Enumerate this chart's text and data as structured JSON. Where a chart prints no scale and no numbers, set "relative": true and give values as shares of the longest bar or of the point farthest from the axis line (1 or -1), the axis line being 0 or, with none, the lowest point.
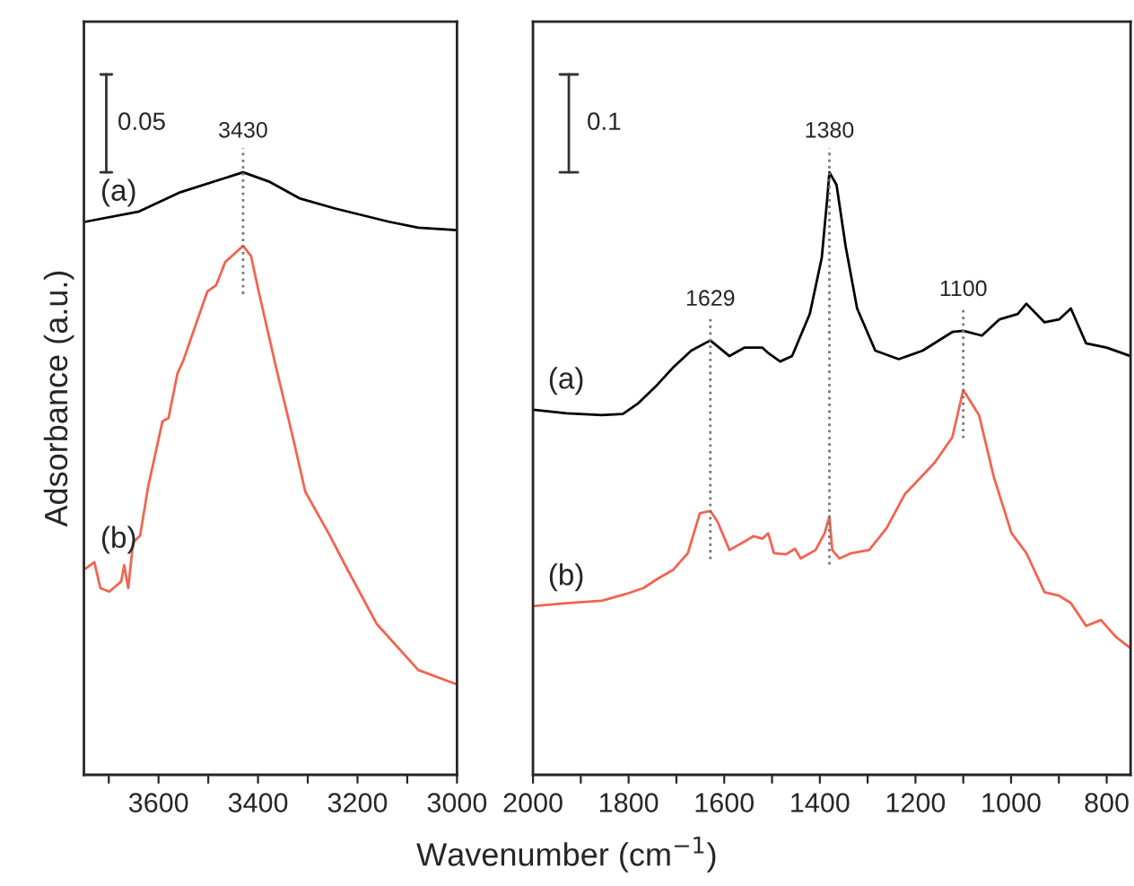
{
  "chart_data": [
    {
      "type": "line",
      "relative": true,
      "ylabel": "Adsorbance (a.u.)",
      "xlabel": "Wavenumber (cm$^{−1}$)",
      "tick_labels": "x",
      "xlim": [
        3750,
        3000
      ],
      "xticks": [
        {
          "value": 3700,
          "label": null
        },
        3600,
        {
          "value": 3500,
          "label": null
        },
        3400,
        {
          "value": 3300,
          "label": null
        },
        3200,
        {
          "value": 3100,
          "label": null
        },
        3000
      ],
      "annotations": [
        "0.05",
        {
          "text": "3430",
          "x": 3430,
          "y": 1.0
        }
      ],
      "series": [
        {
          "name": "(a)",
          "color": "#000000",
          "x": [
            3747,
            3639,
            3556,
            3430,
            3376,
            3317,
            3245,
            3137,
            3078,
            3000
          ],
          "values": [
            0.918,
            0.935,
            0.967,
            1.0,
            0.984,
            0.957,
            0.94,
            0.918,
            0.908,
            0.904
          ]
        },
        {
          "name": "(b)",
          "color": "#f4634f",
          "x": [
            3747,
            3729,
            3717,
            3699,
            3675,
            3669,
            3661,
            3651,
            3637,
            3621,
            3592,
            3580,
            3562,
            3550,
            3532,
            3502,
            3484,
            3466,
            3430,
            3414,
            3400,
            3364,
            3329,
            3305,
            3257,
            3221,
            3161,
            3078,
            3000
          ],
          "values": [
            0.342,
            0.353,
            0.31,
            0.304,
            0.321,
            0.348,
            0.31,
            0.386,
            0.397,
            0.478,
            0.587,
            0.592,
            0.666,
            0.688,
            0.731,
            0.802,
            0.813,
            0.851,
            0.878,
            0.861,
            0.807,
            0.677,
            0.557,
            0.47,
            0.399,
            0.342,
            0.25,
            0.174,
            0.15
          ]
        }
      ]
    },
    {
      "type": "line",
      "relative": true,
      "tick_labels": "x",
      "xlim": [
        2000,
        750
      ],
      "xticks": [
        2000,
        {
          "value": 1900,
          "label": null
        },
        1800,
        {
          "value": 1700,
          "label": null
        },
        1600,
        {
          "value": 1500,
          "label": null
        },
        1400,
        {
          "value": 1300,
          "label": null
        },
        1200,
        {
          "value": 1100,
          "label": null
        },
        1000,
        {
          "value": 900,
          "label": null
        },
        800
      ],
      "annotations": [
        "0.1",
        {
          "text": "1629",
          "x": 1629,
          "y": 0.721
        },
        {
          "text": "1380",
          "x": 1380,
          "y": 1.0
        },
        {
          "text": "1100",
          "x": 1100,
          "y": 0.737
        }
      ],
      "series": [
        {
          "name": "(a)",
          "color": "#000000",
          "x": [
            2000,
            1930,
            1856,
            1812,
            1781,
            1744,
            1707,
            1669,
            1629,
            1589,
            1558,
            1520,
            1508,
            1483,
            1458,
            1421,
            1396,
            1384,
            1380,
            1365,
            1346,
            1322,
            1284,
            1235,
            1185,
            1123,
            1100,
            1061,
            1024,
            986,
            968,
            930,
            899,
            875,
            843,
            800,
            750
          ],
          "values": [
            0.606,
            0.6,
            0.597,
            0.599,
            0.616,
            0.644,
            0.676,
            0.704,
            0.721,
            0.695,
            0.709,
            0.709,
            0.7,
            0.686,
            0.695,
            0.765,
            0.858,
            0.961,
            1.0,
            0.979,
            0.877,
            0.774,
            0.704,
            0.69,
            0.704,
            0.735,
            0.737,
            0.729,
            0.756,
            0.765,
            0.782,
            0.751,
            0.756,
            0.774,
            0.716,
            0.709,
            0.695
          ]
        },
        {
          "name": "(b)",
          "color": "#f4634f",
          "x": [
            2000,
            1930,
            1856,
            1806,
            1769,
            1738,
            1707,
            1676,
            1651,
            1629,
            1614,
            1589,
            1558,
            1539,
            1520,
            1508,
            1496,
            1471,
            1452,
            1440,
            1409,
            1390,
            1380,
            1374,
            1359,
            1334,
            1297,
            1260,
            1222,
            1160,
            1123,
            1100,
            1067,
            1036,
            999,
            968,
            930,
            899,
            875,
            843,
            812,
            781,
            750
          ],
          "values": [
            0.28,
            0.285,
            0.289,
            0.3,
            0.31,
            0.326,
            0.34,
            0.368,
            0.434,
            0.438,
            0.42,
            0.373,
            0.387,
            0.396,
            0.392,
            0.401,
            0.368,
            0.366,
            0.375,
            0.359,
            0.373,
            0.401,
            0.429,
            0.373,
            0.359,
            0.368,
            0.373,
            0.41,
            0.466,
            0.518,
            0.56,
            0.639,
            0.597,
            0.494,
            0.401,
            0.368,
            0.303,
            0.297,
            0.285,
            0.247,
            0.257,
            0.229,
            0.21
          ]
        }
      ]
    }
  ]
}
